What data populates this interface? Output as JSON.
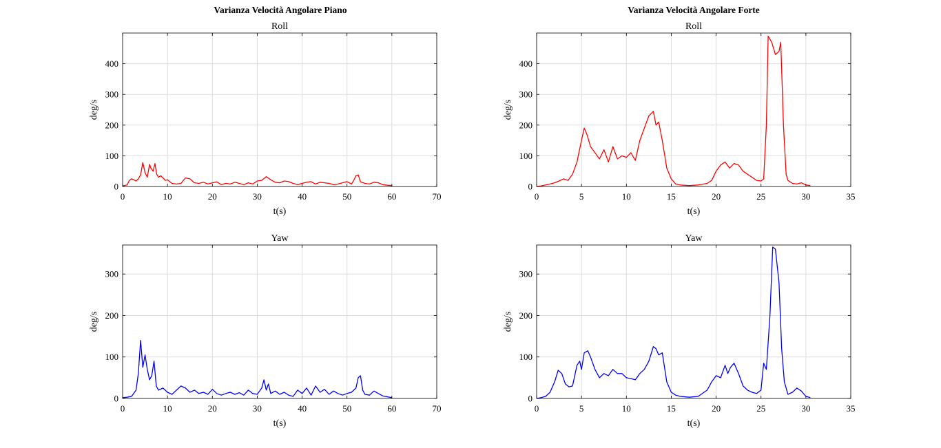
{
  "titles": {
    "left": "Varianza Velocità Angolare Piano",
    "right": "Varianza Velocità Angolare Forte"
  },
  "colors": {
    "roll": "#ff0000",
    "yaw": "#0000ff",
    "grid": "#dcdcdc",
    "axes": "#000000"
  },
  "chart_data": [
    {
      "id": "piano-roll",
      "type": "line",
      "title": "Roll",
      "xlabel": "t(s)",
      "ylabel": "deg/s",
      "xlim": [
        0,
        70
      ],
      "ylim": [
        0,
        500
      ],
      "xticks": [
        0,
        10,
        20,
        30,
        40,
        50,
        60,
        70
      ],
      "yticks": [
        0,
        100,
        200,
        300,
        400
      ],
      "grid": true,
      "color": "#ff0000",
      "x": [
        0,
        1,
        1.5,
        2,
        2.5,
        3,
        3.5,
        4,
        4.5,
        5,
        5.5,
        6,
        6.3,
        6.8,
        7.2,
        7.6,
        8,
        8.5,
        9,
        9.5,
        10,
        11,
        12,
        13,
        14,
        15,
        16,
        17,
        18,
        19,
        20,
        21,
        22,
        23,
        24,
        25,
        26,
        27,
        28,
        29,
        30,
        31,
        32,
        33,
        34,
        35,
        36,
        37,
        38,
        39,
        40,
        41,
        42,
        43,
        44,
        45,
        46,
        47,
        48,
        49,
        50,
        51,
        51.5,
        52,
        52.5,
        53,
        54,
        55,
        56,
        57,
        58,
        59,
        60
      ],
      "values": [
        2,
        5,
        20,
        25,
        22,
        18,
        25,
        38,
        78,
        45,
        30,
        72,
        60,
        50,
        75,
        40,
        30,
        35,
        28,
        20,
        22,
        10,
        8,
        10,
        28,
        25,
        12,
        10,
        14,
        8,
        12,
        15,
        6,
        10,
        8,
        14,
        10,
        6,
        12,
        8,
        18,
        20,
        32,
        22,
        14,
        12,
        18,
        16,
        10,
        6,
        10,
        14,
        16,
        8,
        14,
        12,
        10,
        6,
        8,
        12,
        16,
        8,
        20,
        35,
        38,
        15,
        10,
        8,
        14,
        12,
        6,
        4,
        3
      ]
    },
    {
      "id": "forte-roll",
      "type": "line",
      "title": "Roll",
      "xlabel": "t(s)",
      "ylabel": "deg/s",
      "xlim": [
        0,
        35
      ],
      "ylim": [
        0,
        500
      ],
      "xticks": [
        0,
        5,
        10,
        15,
        20,
        25,
        30,
        35
      ],
      "yticks": [
        0,
        100,
        200,
        300,
        400
      ],
      "grid": true,
      "color": "#ff0000",
      "x": [
        0,
        0.5,
        1,
        1.5,
        2,
        2.5,
        3,
        3.5,
        4,
        4.5,
        5,
        5.3,
        5.6,
        6,
        6.5,
        7,
        7.5,
        8,
        8.5,
        9,
        9.5,
        10,
        10.5,
        11,
        11.5,
        12,
        12.5,
        13,
        13.3,
        13.6,
        14,
        14.5,
        15,
        15.5,
        16,
        17,
        18,
        19,
        19.5,
        20,
        20.5,
        21,
        21.5,
        22,
        22.5,
        23,
        23.5,
        24,
        24.5,
        25,
        25.3,
        25.6,
        25.8,
        26.2,
        26.6,
        27,
        27.2,
        27.5,
        27.8,
        28,
        28.5,
        29,
        29.5,
        30,
        30.5
      ],
      "values": [
        0,
        2,
        5,
        8,
        12,
        18,
        25,
        20,
        40,
        80,
        150,
        190,
        170,
        130,
        110,
        90,
        120,
        80,
        130,
        90,
        100,
        95,
        110,
        85,
        150,
        190,
        230,
        245,
        200,
        210,
        150,
        60,
        25,
        8,
        5,
        3,
        5,
        10,
        20,
        50,
        70,
        80,
        60,
        75,
        70,
        50,
        40,
        30,
        20,
        18,
        25,
        200,
        490,
        470,
        430,
        440,
        470,
        200,
        40,
        20,
        10,
        8,
        12,
        5,
        3
      ]
    },
    {
      "id": "piano-yaw",
      "type": "line",
      "title": "Yaw",
      "xlabel": "t(s)",
      "ylabel": "deg/s",
      "xlim": [
        0,
        70
      ],
      "ylim": [
        0,
        370
      ],
      "xticks": [
        0,
        10,
        20,
        30,
        40,
        50,
        60,
        70
      ],
      "yticks": [
        0,
        100,
        200,
        300
      ],
      "grid": true,
      "color": "#0000ff",
      "x": [
        0,
        1,
        2,
        3,
        3.5,
        4,
        4.5,
        5,
        5.5,
        6,
        6.5,
        7,
        7.5,
        8,
        9,
        10,
        11,
        12,
        13,
        14,
        15,
        16,
        17,
        18,
        19,
        20,
        21,
        22,
        23,
        24,
        25,
        26,
        27,
        28,
        29,
        30,
        31,
        31.5,
        32,
        32.5,
        33,
        34,
        35,
        36,
        37,
        38,
        39,
        40,
        41,
        42,
        43,
        44,
        45,
        46,
        47,
        48,
        49,
        50,
        51,
        52,
        52.5,
        53,
        53.5,
        54,
        55,
        56,
        57,
        58,
        59,
        60
      ],
      "values": [
        2,
        3,
        5,
        20,
        60,
        140,
        75,
        105,
        70,
        45,
        55,
        90,
        30,
        20,
        25,
        15,
        10,
        20,
        30,
        25,
        15,
        20,
        12,
        15,
        10,
        22,
        12,
        8,
        12,
        15,
        10,
        14,
        8,
        20,
        12,
        10,
        25,
        45,
        20,
        35,
        12,
        18,
        10,
        15,
        8,
        5,
        20,
        12,
        25,
        8,
        30,
        15,
        22,
        10,
        18,
        12,
        8,
        12,
        15,
        25,
        50,
        55,
        20,
        10,
        8,
        18,
        12,
        6,
        4,
        2
      ]
    },
    {
      "id": "forte-yaw",
      "type": "line",
      "title": "Yaw",
      "xlabel": "t(s)",
      "ylabel": "deg/s",
      "xlim": [
        0,
        35
      ],
      "ylim": [
        0,
        370
      ],
      "xticks": [
        0,
        5,
        10,
        15,
        20,
        25,
        30,
        35
      ],
      "yticks": [
        0,
        100,
        200,
        300
      ],
      "grid": true,
      "color": "#0000ff",
      "x": [
        0,
        0.5,
        1,
        1.5,
        2,
        2.4,
        2.8,
        3.2,
        3.6,
        4,
        4.5,
        4.8,
        5,
        5.3,
        5.7,
        6,
        6.5,
        7,
        7.5,
        8,
        8.5,
        9,
        9.5,
        10,
        10.5,
        11,
        11.5,
        12,
        12.5,
        13,
        13.3,
        13.6,
        14,
        14.5,
        15,
        15.5,
        16,
        17,
        18,
        19,
        19.5,
        20,
        20.5,
        21,
        21.3,
        21.6,
        22,
        22.5,
        23,
        23.5,
        24,
        24.5,
        25,
        25.3,
        25.6,
        26,
        26.3,
        26.6,
        27,
        27.3,
        27.6,
        28,
        28.5,
        29,
        29.5,
        30,
        30.5
      ],
      "values": [
        0,
        2,
        5,
        15,
        40,
        68,
        60,
        35,
        28,
        30,
        80,
        90,
        70,
        110,
        115,
        100,
        70,
        50,
        60,
        55,
        70,
        60,
        60,
        50,
        48,
        45,
        60,
        70,
        90,
        125,
        120,
        105,
        110,
        40,
        15,
        8,
        5,
        3,
        5,
        20,
        40,
        55,
        50,
        80,
        60,
        75,
        85,
        60,
        30,
        20,
        15,
        12,
        20,
        85,
        70,
        200,
        365,
        360,
        280,
        120,
        40,
        10,
        15,
        25,
        18,
        5,
        2
      ]
    }
  ]
}
